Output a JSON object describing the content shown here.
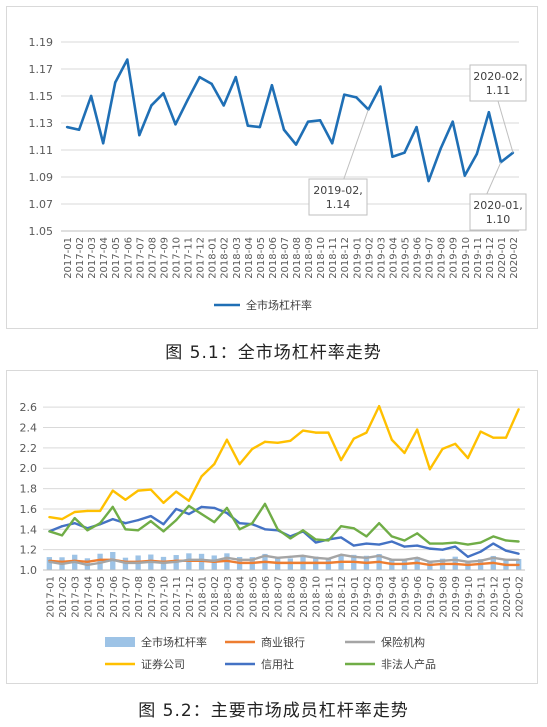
{
  "captions": {
    "fig1": "图 5.1：全市场杠杆率走势",
    "fig2": "图 5.2：主要市场成员杠杆率走势"
  },
  "chart_data": [
    {
      "type": "line",
      "ylim": [
        1.05,
        1.19
      ],
      "yticks": [
        "1.05",
        "1.07",
        "1.09",
        "1.11",
        "1.13",
        "1.15",
        "1.17",
        "1.19"
      ],
      "categories": [
        "2017-01",
        "2017-02",
        "2017-03",
        "2017-04",
        "2017-05",
        "2017-06",
        "2017-07",
        "2017-08",
        "2017-09",
        "2017-10",
        "2017-11",
        "2017-12",
        "2018-01",
        "2018-02",
        "2018-03",
        "2018-04",
        "2018-05",
        "2018-06",
        "2018-07",
        "2018-08",
        "2018-09",
        "2018-10",
        "2018-11",
        "2018-12",
        "2019-01",
        "2019-02",
        "2019-03",
        "2019-04",
        "2019-05",
        "2019-06",
        "2019-07",
        "2019-08",
        "2019-09",
        "2019-10",
        "2019-11",
        "2019-12",
        "2020-01",
        "2020-02"
      ],
      "series": [
        {
          "name": "全市场杠杆率",
          "color": "#1f6fb5",
          "values": [
            1.127,
            1.125,
            1.15,
            1.115,
            1.16,
            1.177,
            1.121,
            1.143,
            1.152,
            1.129,
            1.147,
            1.164,
            1.159,
            1.143,
            1.164,
            1.128,
            1.127,
            1.158,
            1.125,
            1.114,
            1.131,
            1.132,
            1.115,
            1.151,
            1.149,
            1.14,
            1.157,
            1.105,
            1.108,
            1.127,
            1.087,
            1.111,
            1.131,
            1.091,
            1.107,
            1.138,
            1.101,
            1.108
          ]
        }
      ],
      "legend_position": "bottom",
      "annotations": [
        {
          "label": "2020-02,\n1.11",
          "target_category": "2020-02",
          "target_value": 1.108
        },
        {
          "label": "2019-02,\n1.14",
          "target_category": "2019-02",
          "target_value": 1.14
        },
        {
          "label": "2020-01,\n1.10",
          "target_category": "2020-01",
          "target_value": 1.101
        }
      ]
    },
    {
      "type": "bar+line",
      "ylim": [
        1.0,
        2.7
      ],
      "yticks": [
        "1.0",
        "1.2",
        "1.4",
        "1.6",
        "1.8",
        "2.0",
        "2.2",
        "2.4",
        "2.6"
      ],
      "categories": [
        "2017-01",
        "2017-02",
        "2017-03",
        "2017-04",
        "2017-05",
        "2017-06",
        "2017-07",
        "2017-08",
        "2017-09",
        "2017-10",
        "2017-11",
        "2017-12",
        "2018-01",
        "2018-02",
        "2018-03",
        "2018-04",
        "2018-05",
        "2018-06",
        "2018-07",
        "2018-08",
        "2018-09",
        "2018-10",
        "2018-11",
        "2018-12",
        "2019-01",
        "2019-02",
        "2019-03",
        "2019-04",
        "2019-05",
        "2019-06",
        "2019-07",
        "2019-08",
        "2019-09",
        "2019-10",
        "2019-11",
        "2019-12",
        "2020-01",
        "2020-02"
      ],
      "bar_series": {
        "name": "全市场杠杆率",
        "color": "#9dc3e6",
        "values": [
          1.127,
          1.125,
          1.15,
          1.115,
          1.16,
          1.177,
          1.121,
          1.143,
          1.152,
          1.129,
          1.147,
          1.164,
          1.159,
          1.143,
          1.164,
          1.128,
          1.127,
          1.158,
          1.125,
          1.114,
          1.131,
          1.132,
          1.115,
          1.151,
          1.149,
          1.14,
          1.157,
          1.105,
          1.108,
          1.127,
          1.087,
          1.111,
          1.131,
          1.091,
          1.107,
          1.138,
          1.101,
          1.108
        ]
      },
      "series": [
        {
          "name": "商业银行",
          "color": "#ed7d31",
          "values": [
            1.09,
            1.08,
            1.09,
            1.08,
            1.1,
            1.1,
            1.08,
            1.08,
            1.09,
            1.08,
            1.09,
            1.09,
            1.09,
            1.08,
            1.09,
            1.07,
            1.07,
            1.08,
            1.07,
            1.07,
            1.07,
            1.07,
            1.07,
            1.08,
            1.08,
            1.07,
            1.08,
            1.06,
            1.06,
            1.07,
            1.05,
            1.06,
            1.06,
            1.05,
            1.06,
            1.07,
            1.05,
            1.05
          ]
        },
        {
          "name": "保险机构",
          "color": "#a5a5a5",
          "values": [
            1.08,
            1.06,
            1.08,
            1.05,
            1.07,
            1.1,
            1.07,
            1.07,
            1.08,
            1.07,
            1.08,
            1.1,
            1.1,
            1.09,
            1.12,
            1.1,
            1.1,
            1.14,
            1.12,
            1.13,
            1.14,
            1.12,
            1.11,
            1.15,
            1.13,
            1.12,
            1.14,
            1.1,
            1.1,
            1.12,
            1.08,
            1.09,
            1.1,
            1.08,
            1.09,
            1.12,
            1.1,
            1.1
          ]
        },
        {
          "name": "证券公司",
          "color": "#ffc000",
          "values": [
            1.52,
            1.5,
            1.57,
            1.58,
            1.58,
            1.78,
            1.69,
            1.78,
            1.79,
            1.66,
            1.77,
            1.68,
            1.92,
            2.04,
            2.28,
            2.04,
            2.19,
            2.26,
            2.25,
            2.27,
            2.37,
            2.35,
            2.35,
            2.08,
            2.29,
            2.35,
            2.61,
            2.28,
            2.15,
            2.38,
            1.99,
            2.19,
            2.24,
            2.1,
            2.36,
            2.3,
            2.3,
            2.58
          ]
        },
        {
          "name": "信用社",
          "color": "#4472c4",
          "values": [
            1.38,
            1.43,
            1.46,
            1.41,
            1.45,
            1.5,
            1.46,
            1.49,
            1.53,
            1.45,
            1.6,
            1.55,
            1.62,
            1.61,
            1.56,
            1.46,
            1.45,
            1.4,
            1.39,
            1.33,
            1.38,
            1.27,
            1.3,
            1.32,
            1.24,
            1.26,
            1.25,
            1.28,
            1.23,
            1.24,
            1.21,
            1.2,
            1.23,
            1.13,
            1.18,
            1.26,
            1.19,
            1.16
          ]
        },
        {
          "name": "非法人产品",
          "color": "#70ad47",
          "values": [
            1.38,
            1.34,
            1.51,
            1.39,
            1.46,
            1.62,
            1.4,
            1.39,
            1.48,
            1.38,
            1.49,
            1.63,
            1.55,
            1.47,
            1.61,
            1.4,
            1.46,
            1.65,
            1.4,
            1.31,
            1.39,
            1.3,
            1.29,
            1.43,
            1.41,
            1.33,
            1.46,
            1.33,
            1.29,
            1.36,
            1.26,
            1.26,
            1.27,
            1.25,
            1.27,
            1.33,
            1.29,
            1.28
          ]
        }
      ],
      "legend_position": "bottom"
    }
  ]
}
